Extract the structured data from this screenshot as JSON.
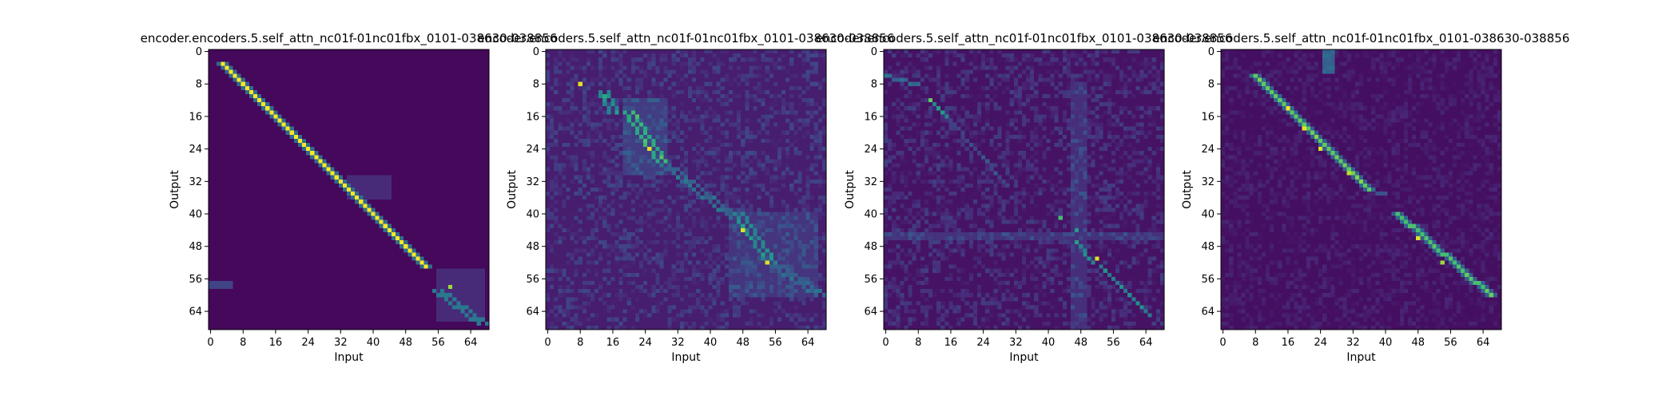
{
  "figure": {
    "background": "#ffffff"
  },
  "chart_data": [
    {
      "type": "heatmap",
      "title": "encoder.encoders.5.self_attn_nc01f-01nc01fbx_0101-038630-038856",
      "xlabel": "Input",
      "ylabel": "Output",
      "x_ticks": [
        "0",
        "8",
        "16",
        "24",
        "32",
        "40",
        "48",
        "56",
        "64"
      ],
      "y_ticks": [
        "0",
        "8",
        "16",
        "24",
        "32",
        "40",
        "48",
        "56",
        "64"
      ],
      "xlim": [
        0,
        69
      ],
      "ylim": [
        0,
        69
      ],
      "colormap": "viridis",
      "value_range": [
        0,
        1
      ],
      "background_value": 0.02,
      "features": [
        {
          "kind": "diagonal",
          "from": [
            3,
            3
          ],
          "to": [
            53,
            53
          ],
          "value": 1.0,
          "width": 0
        },
        {
          "kind": "diagonal",
          "from": [
            3,
            3
          ],
          "to": [
            53,
            53
          ],
          "value": 0.35,
          "width": 1
        },
        {
          "kind": "point",
          "x": 59,
          "y": 58,
          "value": 0.85
        },
        {
          "kind": "line",
          "from": [
            56,
            59
          ],
          "to": [
            67,
            67
          ],
          "value": 0.4,
          "width": 1
        },
        {
          "kind": "region",
          "x": [
            0,
            5
          ],
          "y": [
            57,
            58
          ],
          "value": 0.2
        },
        {
          "kind": "region",
          "x": [
            56,
            67
          ],
          "y": [
            54,
            66
          ],
          "value": 0.12
        },
        {
          "kind": "region",
          "x": [
            34,
            44
          ],
          "y": [
            31,
            36
          ],
          "value": 0.12
        }
      ]
    },
    {
      "type": "heatmap",
      "title": "encoder.encoders.5.self_attn_nc01f-01nc01fbx_0101-038630-038856",
      "xlabel": "Input",
      "ylabel": "Output",
      "x_ticks": [
        "0",
        "8",
        "16",
        "24",
        "32",
        "40",
        "48",
        "56",
        "64"
      ],
      "y_ticks": [
        "0",
        "8",
        "16",
        "24",
        "32",
        "40",
        "48",
        "56",
        "64"
      ],
      "xlim": [
        0,
        69
      ],
      "ylim": [
        0,
        69
      ],
      "colormap": "viridis",
      "value_range": [
        0,
        1
      ],
      "background_value": 0.08,
      "features": [
        {
          "kind": "point",
          "x": 8,
          "y": 8,
          "value": 0.95
        },
        {
          "kind": "point",
          "x": 14,
          "y": 11,
          "value": 0.6
        },
        {
          "kind": "line",
          "from": [
            14,
            10
          ],
          "to": [
            16,
            15
          ],
          "value": 0.45,
          "width": 1
        },
        {
          "kind": "line",
          "from": [
            20,
            15
          ],
          "to": [
            28,
            27
          ],
          "value": 0.6,
          "width": 1
        },
        {
          "kind": "point",
          "x": 25,
          "y": 24,
          "value": 0.95
        },
        {
          "kind": "line",
          "from": [
            28,
            27
          ],
          "to": [
            46,
            41
          ],
          "value": 0.3,
          "width": 1
        },
        {
          "kind": "line",
          "from": [
            47,
            40
          ],
          "to": [
            55,
            52
          ],
          "value": 0.45,
          "width": 1
        },
        {
          "kind": "point",
          "x": 48,
          "y": 44,
          "value": 0.9
        },
        {
          "kind": "point",
          "x": 54,
          "y": 52,
          "value": 0.85
        },
        {
          "kind": "line",
          "from": [
            55,
            52
          ],
          "to": [
            67,
            60
          ],
          "value": 0.3,
          "width": 1
        },
        {
          "kind": "region",
          "x": [
            19,
            29
          ],
          "y": [
            12,
            30
          ],
          "value": 0.18
        },
        {
          "kind": "region",
          "x": [
            45,
            66
          ],
          "y": [
            40,
            60
          ],
          "value": 0.15
        },
        {
          "kind": "noise",
          "amount": 0.1,
          "seed": 2
        }
      ]
    },
    {
      "type": "heatmap",
      "title": "encoder.encoders.5.self_attn_nc01f-01nc01fbx_0101-038630-038856",
      "xlabel": "Input",
      "ylabel": "Output",
      "x_ticks": [
        "0",
        "8",
        "16",
        "24",
        "32",
        "40",
        "48",
        "56",
        "64"
      ],
      "y_ticks": [
        "0",
        "8",
        "16",
        "24",
        "32",
        "40",
        "48",
        "56",
        "64"
      ],
      "xlim": [
        0,
        69
      ],
      "ylim": [
        0,
        69
      ],
      "colormap": "viridis",
      "value_range": [
        0,
        1
      ],
      "background_value": 0.05,
      "features": [
        {
          "kind": "line",
          "from": [
            0,
            6
          ],
          "to": [
            8,
            8
          ],
          "value": 0.3,
          "width": 0
        },
        {
          "kind": "point",
          "x": 11,
          "y": 12,
          "value": 0.7
        },
        {
          "kind": "line",
          "from": [
            11,
            12
          ],
          "to": [
            15,
            16
          ],
          "value": 0.45,
          "width": 0
        },
        {
          "kind": "line",
          "from": [
            15,
            16
          ],
          "to": [
            30,
            33
          ],
          "value": 0.2,
          "width": 0
        },
        {
          "kind": "point",
          "x": 43,
          "y": 41,
          "value": 0.7
        },
        {
          "kind": "point",
          "x": 47,
          "y": 44,
          "value": 0.55
        },
        {
          "kind": "line",
          "from": [
            47,
            47
          ],
          "to": [
            51,
            52
          ],
          "value": 0.45,
          "width": 0
        },
        {
          "kind": "point",
          "x": 52,
          "y": 51,
          "value": 0.95
        },
        {
          "kind": "line",
          "from": [
            53,
            53
          ],
          "to": [
            65,
            65
          ],
          "value": 0.4,
          "width": 0
        },
        {
          "kind": "region",
          "x": [
            46,
            49
          ],
          "y": [
            8,
            69
          ],
          "value": 0.13
        },
        {
          "kind": "region",
          "x": [
            0,
            69
          ],
          "y": [
            45,
            46
          ],
          "value": 0.14
        },
        {
          "kind": "noise",
          "amount": 0.1,
          "seed": 3
        }
      ]
    },
    {
      "type": "heatmap",
      "title": "encoder.encoders.5.self_attn_nc01f-01nc01fbx_0101-038630-038856",
      "xlabel": "Input",
      "ylabel": "Output",
      "x_ticks": [
        "0",
        "8",
        "16",
        "24",
        "32",
        "40",
        "48",
        "56",
        "64"
      ],
      "y_ticks": [
        "0",
        "8",
        "16",
        "24",
        "32",
        "40",
        "48",
        "56",
        "64"
      ],
      "xlim": [
        0,
        69
      ],
      "ylim": [
        0,
        69
      ],
      "colormap": "viridis",
      "value_range": [
        0,
        1
      ],
      "background_value": 0.04,
      "features": [
        {
          "kind": "line",
          "from": [
            8,
            6
          ],
          "to": [
            36,
            34
          ],
          "value": 0.75,
          "width": 0
        },
        {
          "kind": "line",
          "from": [
            8,
            6
          ],
          "to": [
            36,
            34
          ],
          "value": 0.3,
          "width": 1
        },
        {
          "kind": "point",
          "x": 16,
          "y": 14,
          "value": 1.0
        },
        {
          "kind": "point",
          "x": 20,
          "y": 19,
          "value": 0.95
        },
        {
          "kind": "point",
          "x": 24,
          "y": 24,
          "value": 0.95
        },
        {
          "kind": "point",
          "x": 31,
          "y": 30,
          "value": 0.9
        },
        {
          "kind": "line",
          "from": [
            36,
            34
          ],
          "to": [
            40,
            35
          ],
          "value": 0.25,
          "width": 0
        },
        {
          "kind": "line",
          "from": [
            43,
            40
          ],
          "to": [
            66,
            60
          ],
          "value": 0.7,
          "width": 0
        },
        {
          "kind": "line",
          "from": [
            43,
            40
          ],
          "to": [
            66,
            60
          ],
          "value": 0.3,
          "width": 1
        },
        {
          "kind": "point",
          "x": 48,
          "y": 46,
          "value": 0.95
        },
        {
          "kind": "point",
          "x": 54,
          "y": 52,
          "value": 0.85
        },
        {
          "kind": "region",
          "x": [
            25,
            27
          ],
          "y": [
            0,
            5
          ],
          "value": 0.3
        },
        {
          "kind": "noise",
          "amount": 0.05,
          "seed": 4
        }
      ]
    }
  ]
}
